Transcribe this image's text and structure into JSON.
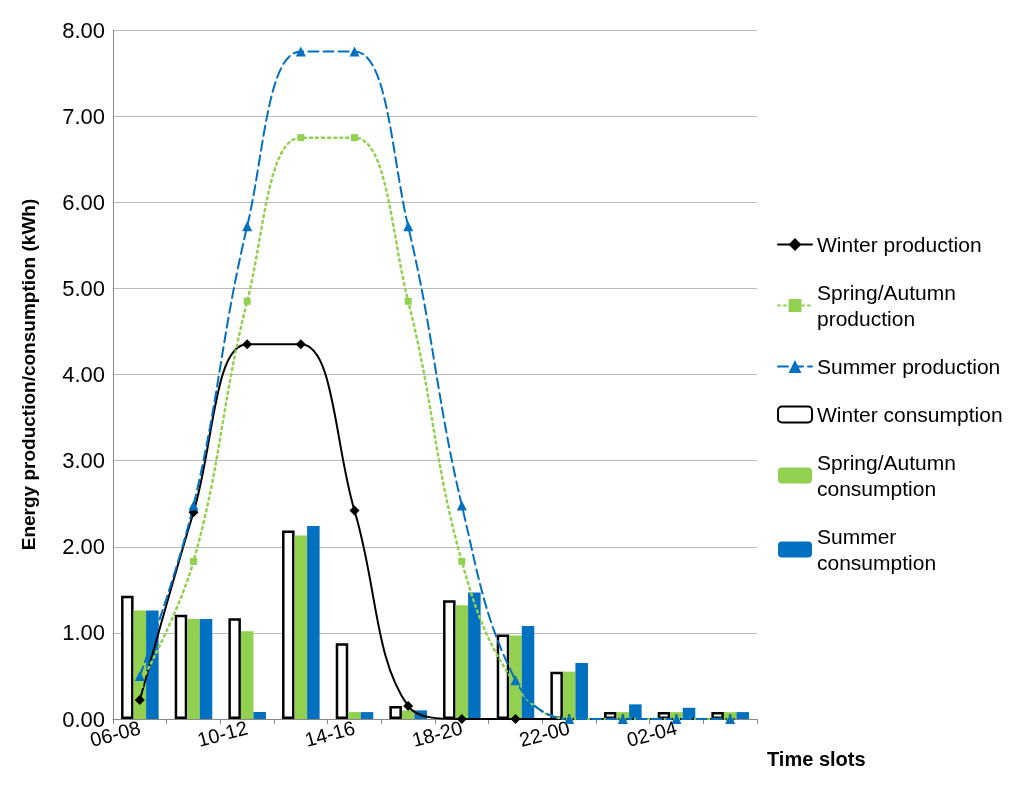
{
  "chart_data": {
    "type": "bar",
    "xlabel": "Time slots",
    "ylabel": "Energy production/consumption (kWh)",
    "categories": [
      "06-08",
      null,
      "10-12",
      null,
      "14-16",
      null,
      "18-20",
      null,
      "22-00",
      null,
      "02-04",
      null
    ],
    "ylim": [
      0,
      8
    ],
    "yticks": [
      {
        "value": 0,
        "label": "0.00"
      },
      {
        "value": 1,
        "label": "1.00"
      },
      {
        "value": 2,
        "label": "2.00"
      },
      {
        "value": 3,
        "label": "3.00"
      },
      {
        "value": 4,
        "label": "4.00"
      },
      {
        "value": 5,
        "label": "5.00"
      },
      {
        "value": 6,
        "label": "6.00"
      },
      {
        "value": 7,
        "label": "7.00"
      },
      {
        "value": 8,
        "label": "8.00"
      }
    ],
    "grid": "y",
    "legend": "right",
    "series": [
      {
        "name": "Winter production",
        "type": "line",
        "color": "#000000",
        "marker": "diamond",
        "line_style": "solid",
        "values": [
          0.22,
          2.4,
          4.35,
          4.35,
          2.42,
          0.15,
          0,
          0,
          0,
          0,
          0,
          0
        ]
      },
      {
        "name": "Spring/Autumn production",
        "type": "line",
        "color": "#92d050",
        "marker": "square",
        "line_style": "dotted",
        "values": [
          0.4,
          1.83,
          4.85,
          6.75,
          6.75,
          4.85,
          1.83,
          0.4,
          0,
          0,
          0,
          0
        ]
      },
      {
        "name": "Summer production",
        "type": "line",
        "color": "#0070c0",
        "marker": "triangle",
        "line_style": "dashed",
        "values": [
          0.5,
          2.48,
          5.72,
          7.75,
          7.75,
          5.72,
          2.48,
          0.45,
          0,
          0,
          0,
          0
        ]
      },
      {
        "name": "Winter consumption",
        "color": "#ffffff",
        "values": [
          1.43,
          1.21,
          1.17,
          2.19,
          0.88,
          0.15,
          1.38,
          0.98,
          0.55,
          0.08,
          0.08,
          0.08
        ]
      },
      {
        "name": "Spring/Autumn consumption",
        "color": "#92d050",
        "values": [
          1.26,
          1.16,
          1.02,
          2.13,
          0.08,
          0.1,
          1.32,
          0.97,
          0.55,
          0.08,
          0.08,
          0.08
        ]
      },
      {
        "name": "Summer consumption",
        "color": "#0070c0",
        "values": [
          1.26,
          1.16,
          0.08,
          2.24,
          0.08,
          0.1,
          1.47,
          1.08,
          0.65,
          0.17,
          0.13,
          0.08
        ]
      }
    ]
  }
}
